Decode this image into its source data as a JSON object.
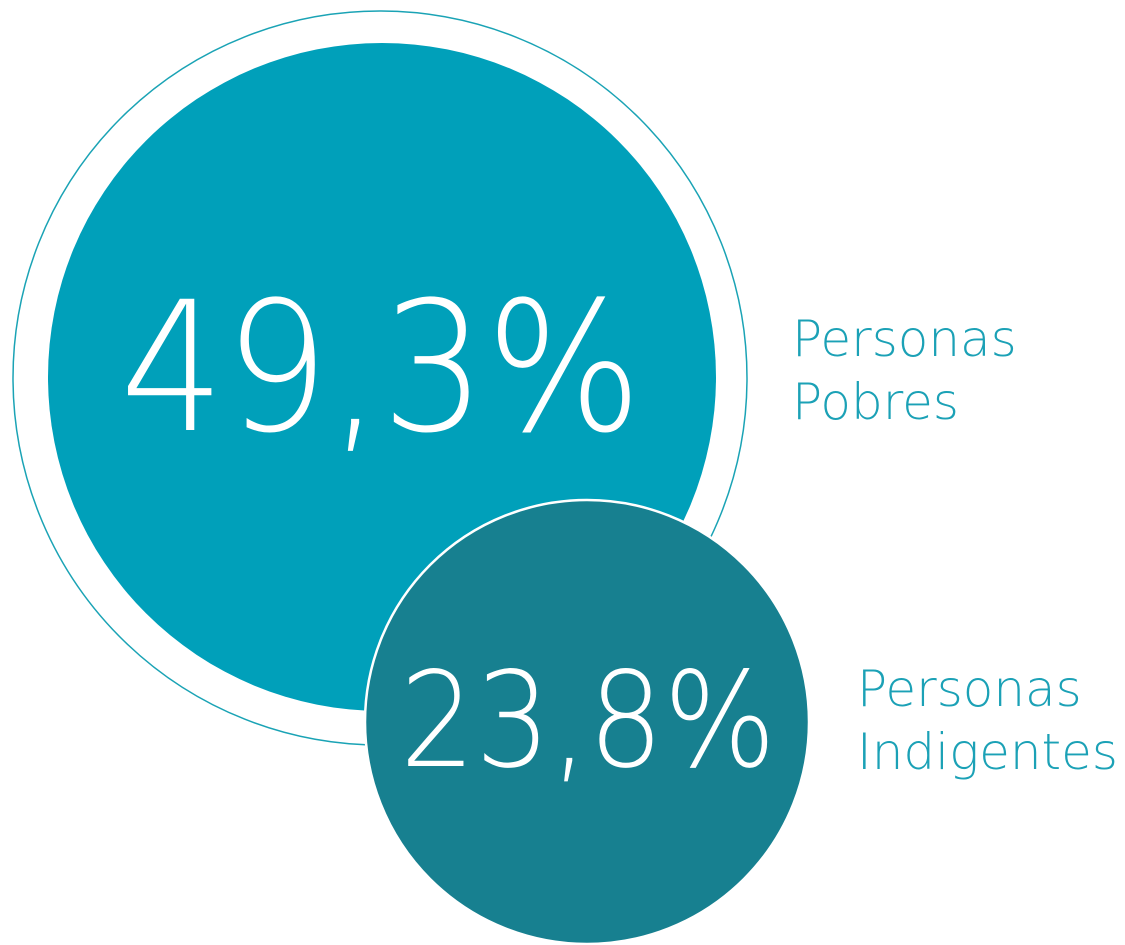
{
  "items": [
    {
      "value": "49,3%",
      "label": [
        "Personas",
        "Pobres"
      ]
    },
    {
      "value": "23,8%",
      "label": [
        "Personas",
        "Indigentes"
      ]
    }
  ]
}
